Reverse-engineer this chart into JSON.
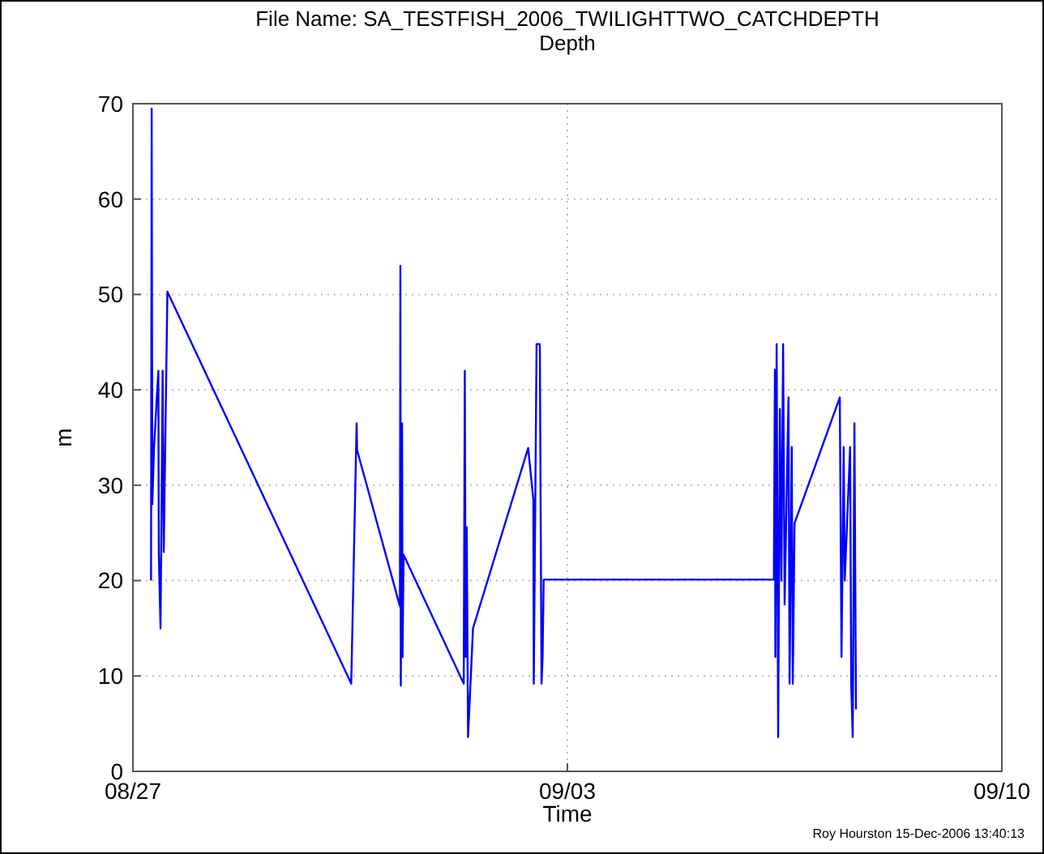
{
  "chart_data": {
    "type": "line",
    "title": "File Name: SA_TESTFISH_2006_TWILIGHTTWO_CATCHDEPTH",
    "subtitle": "Depth",
    "xlabel": "Time",
    "ylabel": "m",
    "annotations": [
      "Roy Hourston 15-Dec-2006 13:40:13"
    ],
    "x": [
      "2006-08-27T07:00",
      "2006-08-27T07:15",
      "2006-08-27T07:30",
      "2006-08-27T08:10",
      "2006-08-27T09:50",
      "2006-08-27T10:00",
      "2006-08-27T10:40",
      "2006-08-27T11:30",
      "2006-08-27T11:55",
      "2006-08-27T13:20",
      "2006-08-30T12:25",
      "2006-08-30T14:30",
      "2006-08-30T14:40",
      "2006-08-31T07:15",
      "2006-08-31T07:25",
      "2006-08-31T07:35",
      "2006-08-31T08:05",
      "2006-08-31T08:15",
      "2006-08-31T08:40",
      "2006-09-01T07:55",
      "2006-09-01T08:20",
      "2006-09-01T08:40",
      "2006-09-01T09:05",
      "2006-09-01T09:35",
      "2006-09-01T11:30",
      "2006-09-02T08:50",
      "2006-09-02T10:50",
      "2006-09-02T11:00",
      "2006-09-02T12:05",
      "2006-09-02T13:20",
      "2006-09-02T14:00",
      "2006-09-02T14:25",
      "2006-09-02T14:50",
      "2006-09-06T07:50",
      "2006-09-06T08:15",
      "2006-09-06T08:25",
      "2006-09-06T08:55",
      "2006-09-06T09:30",
      "2006-09-06T10:10",
      "2006-09-06T10:45",
      "2006-09-06T11:25",
      "2006-09-06T12:00",
      "2006-09-06T13:30",
      "2006-09-06T13:55",
      "2006-09-06T14:45",
      "2006-09-06T15:10",
      "2006-09-06T15:50",
      "2006-09-07T09:20",
      "2006-09-07T10:00",
      "2006-09-07T10:50",
      "2006-09-07T11:15",
      "2006-09-07T13:20",
      "2006-09-07T13:45",
      "2006-09-07T14:20",
      "2006-09-07T15:00",
      "2006-09-07T15:35"
    ],
    "series": [
      {
        "color": "#0000ff",
        "values": [
          20,
          69.5,
          28,
          34,
          42,
          23,
          15,
          42,
          23,
          50.3,
          9.2,
          36.5,
          33.7,
          17.3,
          53,
          9,
          36.5,
          12,
          22.7,
          9.2,
          42,
          12,
          25.6,
          3.6,
          15,
          33.9,
          28.5,
          9.2,
          44.8,
          44.8,
          9.2,
          12,
          20.1,
          20.1,
          42.1,
          12,
          44.8,
          3.6,
          38,
          20,
          44.8,
          17.5,
          39.2,
          9.2,
          34,
          9.2,
          26,
          39.2,
          12,
          34,
          20,
          34,
          9.2,
          3.6,
          36.5,
          6.5
        ]
      }
    ],
    "xlim": [
      "2006-08-27",
      "2006-09-10"
    ],
    "xticks": [
      {
        "value": "2006-08-27",
        "label": "08/27"
      },
      {
        "value": "2006-09-03",
        "label": "09/03"
      },
      {
        "value": "2006-09-10",
        "label": "09/10"
      }
    ],
    "ylim": [
      0,
      70
    ],
    "yticks": [
      0,
      10,
      20,
      30,
      40,
      50,
      60,
      70
    ],
    "grid": true,
    "line_style": "solid",
    "marker": "none"
  }
}
